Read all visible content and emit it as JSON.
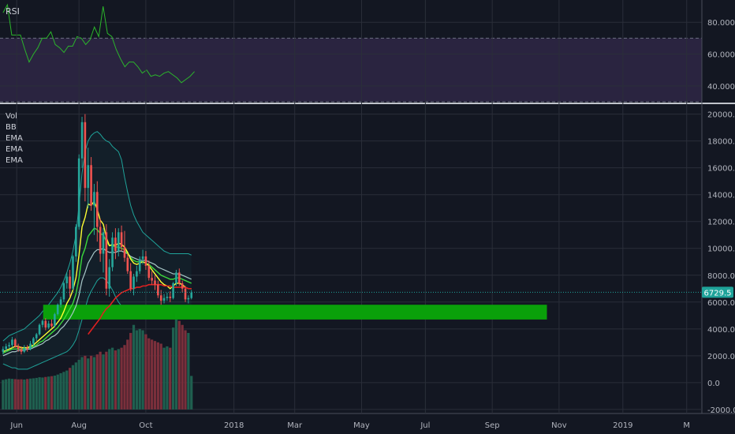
{
  "colors": {
    "background": "#131722",
    "grid": "#2a2e39",
    "axis_text": "#b2b5be",
    "up": "#26a69a",
    "down": "#ef5350",
    "volume_up": "#1f5f4f",
    "volume_down": "#7a2f3b",
    "rsi_line": "#2bb52b",
    "rsi_band": "#2a2440",
    "bb": "#1fa39a",
    "ema_fast": "#ffff33",
    "ema_mid": "#3bd93b",
    "ema_slow_grey": "#a8c8c8",
    "ema_long": "#e02020",
    "support_zone": "#0aa00a",
    "last_price_tag": "#1fa39a"
  },
  "rsi_panel": {
    "label": "RSI",
    "ticks": [
      "80.0000",
      "60.0000",
      "40.0000"
    ],
    "upper_band": 70,
    "lower_band": 30
  },
  "price_panel": {
    "legend": [
      "Vol",
      "BB",
      "EMA",
      "EMA",
      "EMA"
    ],
    "last_price": "6729.5"
  },
  "chart_data": [
    {
      "type": "line",
      "name": "rsi",
      "ylim": [
        29,
        94
      ],
      "x": [
        0.0,
        4,
        8,
        12,
        16,
        20,
        24,
        28,
        32,
        36,
        40,
        44,
        48,
        52,
        56,
        60,
        64,
        68,
        72,
        76,
        80,
        84,
        88,
        92,
        96,
        100,
        104,
        108,
        112,
        116,
        120,
        124,
        128,
        132,
        136,
        140,
        144,
        148,
        152,
        156,
        160,
        164,
        168,
        172,
        176
      ],
      "values": [
        86,
        91,
        72,
        72,
        72,
        63,
        55,
        60,
        64,
        70,
        70,
        74,
        66,
        64,
        61,
        65,
        65,
        71,
        70,
        66,
        69,
        77,
        71,
        90,
        73,
        71,
        63,
        57,
        52,
        55,
        55,
        52,
        48,
        50,
        46,
        47,
        46,
        48,
        49,
        47,
        45,
        42,
        44,
        46,
        49
      ]
    },
    {
      "type": "candlestick",
      "name": "price",
      "ylim": [
        -2300,
        20800
      ],
      "ticks": [
        20000,
        18000,
        16000,
        14000,
        12000,
        10000,
        8000,
        6000,
        4000,
        2000,
        0,
        -2000
      ],
      "tick_labels": [
        "20000.0",
        "18000.0",
        "16000.0",
        "14000.0",
        "12000.0",
        "10000.0",
        "8000.0",
        "6000.0",
        "4000.0",
        "2000.0",
        "0.0",
        "-2000.0"
      ],
      "x_ticks": [
        {
          "x": 4.5,
          "label": "Jun"
        },
        {
          "x": 25,
          "label": "Aug"
        },
        {
          "x": 47,
          "label": "Oct"
        },
        {
          "x": 76,
          "label": "2018"
        },
        {
          "x": 96,
          "label": "Mar"
        },
        {
          "x": 118,
          "label": "May"
        },
        {
          "x": 139,
          "label": "Jul"
        },
        {
          "x": 161,
          "label": "Sep"
        },
        {
          "x": 183,
          "label": "Nov"
        },
        {
          "x": 204,
          "label": "2019"
        },
        {
          "x": 225,
          "label": "M"
        }
      ],
      "x_range": [
        -1,
        230
      ],
      "candles": [
        [
          2300,
          2700,
          2100,
          2500
        ],
        [
          2500,
          2900,
          2300,
          2700
        ],
        [
          2700,
          3000,
          2500,
          2800
        ],
        [
          2800,
          3400,
          2600,
          3200
        ],
        [
          3200,
          3300,
          2600,
          2700
        ],
        [
          2700,
          2900,
          2300,
          2500
        ],
        [
          2500,
          2700,
          2100,
          2300
        ],
        [
          2300,
          2800,
          2200,
          2600
        ],
        [
          2600,
          2800,
          2300,
          2500
        ],
        [
          2500,
          3100,
          2400,
          2900
        ],
        [
          2900,
          3400,
          2700,
          3300
        ],
        [
          3300,
          3700,
          3100,
          3600
        ],
        [
          3600,
          4400,
          3500,
          4300
        ],
        [
          4300,
          4700,
          4100,
          4600
        ],
        [
          4600,
          4800,
          3900,
          4100
        ],
        [
          4100,
          4600,
          4000,
          4400
        ],
        [
          4400,
          4700,
          4100,
          4200
        ],
        [
          4200,
          5200,
          4100,
          5100
        ],
        [
          5100,
          5900,
          5000,
          5800
        ],
        [
          5800,
          6400,
          5600,
          6200
        ],
        [
          6200,
          7500,
          6000,
          7400
        ],
        [
          7400,
          8200,
          7000,
          7900
        ],
        [
          7900,
          8400,
          6400,
          7000
        ],
        [
          7000,
          9500,
          6900,
          9400
        ],
        [
          9400,
          11800,
          9000,
          11600
        ],
        [
          11600,
          17000,
          11400,
          16700
        ],
        [
          16700,
          19800,
          16000,
          19400
        ],
        [
          19400,
          20000,
          13500,
          14500
        ],
        [
          14500,
          17500,
          13000,
          16200
        ],
        [
          16200,
          16800,
          12800,
          13200
        ],
        [
          13200,
          14800,
          11000,
          14200
        ],
        [
          14200,
          15000,
          10500,
          11600
        ],
        [
          11600,
          12200,
          9000,
          9600
        ],
        [
          9600,
          11500,
          8200,
          11200
        ],
        [
          11200,
          11800,
          6500,
          7000
        ],
        [
          7000,
          9200,
          6400,
          8600
        ],
        [
          8600,
          11200,
          8300,
          10800
        ],
        [
          10800,
          11500,
          9200,
          9800
        ],
        [
          9800,
          11500,
          9400,
          11200
        ],
        [
          11200,
          11700,
          9800,
          10100
        ],
        [
          10100,
          11300,
          9000,
          9300
        ],
        [
          9300,
          9600,
          8100,
          8300
        ],
        [
          8300,
          8900,
          6800,
          7000
        ],
        [
          7000,
          8100,
          6500,
          7900
        ],
        [
          7900,
          8700,
          7500,
          8300
        ],
        [
          8300,
          9400,
          8100,
          9200
        ],
        [
          9200,
          9900,
          8800,
          9400
        ],
        [
          9400,
          9800,
          8400,
          8700
        ],
        [
          8700,
          9100,
          7600,
          7800
        ],
        [
          7800,
          8300,
          7300,
          7600
        ],
        [
          7600,
          8000,
          6900,
          7300
        ],
        [
          7300,
          7600,
          6300,
          6500
        ],
        [
          6500,
          6900,
          5800,
          6100
        ],
        [
          6100,
          6600,
          5900,
          6300
        ],
        [
          6300,
          6700,
          6100,
          6400
        ],
        [
          6400,
          6800,
          6000,
          6300
        ],
        [
          6300,
          7500,
          6200,
          7400
        ],
        [
          7400,
          8400,
          7200,
          8200
        ],
        [
          8200,
          8500,
          7200,
          7400
        ],
        [
          7400,
          7600,
          6700,
          7000
        ],
        [
          7000,
          7200,
          6000,
          6200
        ],
        [
          6200,
          6500,
          5900,
          6300
        ],
        [
          6300,
          6900,
          6200,
          6700
        ]
      ],
      "bb_upper": [
        3100,
        3300,
        3500,
        3600,
        3700,
        3800,
        3900,
        4000,
        4200,
        4400,
        4600,
        4800,
        5000,
        5300,
        5500,
        5800,
        6100,
        6400,
        6700,
        7100,
        7600,
        8200,
        8900,
        9800,
        11000,
        13200,
        15600,
        17200,
        18000,
        18400,
        18600,
        18700,
        18500,
        18200,
        18000,
        17900,
        17600,
        17400,
        17200,
        16600,
        15300,
        14200,
        13200,
        12500,
        12000,
        11600,
        11200,
        11000,
        10800,
        10600,
        10400,
        10200,
        10000,
        9800,
        9700,
        9600,
        9600,
        9600,
        9600,
        9600,
        9600,
        9600,
        9500
      ],
      "bb_lower": [
        1400,
        1300,
        1200,
        1100,
        1100,
        1000,
        1000,
        1000,
        1000,
        1100,
        1200,
        1300,
        1400,
        1500,
        1600,
        1700,
        1800,
        1900,
        2000,
        2100,
        2200,
        2300,
        2500,
        2800,
        3200,
        3900,
        4700,
        5500,
        6300,
        6800,
        7200,
        7600,
        7800,
        7800,
        7600,
        7300,
        6900,
        6400,
        6000,
        5700,
        5400,
        5200,
        5100,
        5100,
        5200,
        5300,
        5400,
        5500,
        5500,
        5500,
        5500,
        5400,
        5300,
        5200,
        5200,
        5300,
        5400,
        5500,
        5500,
        5400,
        5300,
        5300,
        5300
      ],
      "ema_fast": [
        2300,
        2400,
        2500,
        2600,
        2700,
        2700,
        2600,
        2600,
        2600,
        2700,
        2800,
        3000,
        3200,
        3400,
        3600,
        3800,
        4000,
        4200,
        4500,
        4800,
        5300,
        5900,
        6300,
        6900,
        7800,
        9500,
        11600,
        12300,
        13300,
        13200,
        13500,
        12900,
        12100,
        11800,
        10800,
        10200,
        10300,
        10200,
        10400,
        10300,
        10100,
        9700,
        9200,
        8900,
        8800,
        8900,
        9000,
        8900,
        8700,
        8400,
        8100,
        7800,
        7500,
        7300,
        7200,
        7000,
        7200,
        7400,
        7400,
        7300,
        7100,
        7000,
        7000
      ],
      "ema_mid": [
        2200,
        2300,
        2400,
        2500,
        2500,
        2500,
        2500,
        2500,
        2600,
        2600,
        2700,
        2800,
        3000,
        3100,
        3300,
        3500,
        3700,
        3900,
        4100,
        4400,
        4700,
        5100,
        5500,
        5900,
        6600,
        7800,
        9400,
        10000,
        10900,
        11200,
        11500,
        11400,
        11100,
        11000,
        10500,
        10200,
        10200,
        10100,
        10100,
        10000,
        9900,
        9600,
        9300,
        9100,
        9000,
        9000,
        9000,
        8900,
        8800,
        8600,
        8400,
        8200,
        8000,
        7900,
        7800,
        7700,
        7700,
        7800,
        7800,
        7700,
        7600,
        7500,
        7400
      ],
      "ema_slow_grey": [
        2000,
        2100,
        2200,
        2300,
        2300,
        2400,
        2400,
        2400,
        2500,
        2500,
        2600,
        2700,
        2800,
        2900,
        3100,
        3200,
        3400,
        3500,
        3700,
        4000,
        4200,
        4500,
        4800,
        5200,
        5700,
        6500,
        7600,
        8200,
        8900,
        9300,
        9700,
        9900,
        9900,
        10000,
        9800,
        9700,
        9700,
        9700,
        9800,
        9800,
        9700,
        9600,
        9400,
        9300,
        9200,
        9100,
        9100,
        9100,
        9000,
        8900,
        8800,
        8600,
        8500,
        8400,
        8300,
        8200,
        8100,
        8100,
        8100,
        8000,
        7900,
        7800,
        7700
      ],
      "ema_long": [
        null,
        null,
        null,
        null,
        null,
        null,
        null,
        null,
        null,
        null,
        null,
        null,
        null,
        null,
        null,
        null,
        null,
        null,
        null,
        null,
        null,
        null,
        null,
        null,
        null,
        null,
        null,
        null,
        3600,
        3900,
        4200,
        4500,
        4800,
        5200,
        5500,
        5700,
        6000,
        6300,
        6500,
        6700,
        6800,
        6900,
        7000,
        7000,
        7100,
        7100,
        7200,
        7200,
        7300,
        7300,
        7300,
        7300,
        7300,
        7200,
        7200,
        7200,
        7100,
        7100,
        7100,
        7100,
        7100,
        7000,
        7000
      ],
      "volume": [
        200,
        250,
        300,
        280,
        260,
        240,
        250,
        230,
        270,
        300,
        320,
        350,
        400,
        380,
        420,
        450,
        480,
        520,
        600,
        700,
        800,
        900,
        1100,
        1300,
        1500,
        1700,
        1900,
        2000,
        1800,
        2000,
        1900,
        2100,
        2300,
        2100,
        2300,
        2500,
        2600,
        2400,
        2500,
        2600,
        2800,
        3200,
        3700,
        4300,
        3900,
        4000,
        3900,
        3600,
        3300,
        3200,
        3100,
        3000,
        2900,
        2600,
        2700,
        2600,
        4100,
        4900,
        4600,
        4300,
        3900,
        3700,
        500
      ],
      "support_zone": {
        "x_start": 13.2,
        "x_end": 179,
        "low": 4700,
        "high": 5800
      }
    }
  ]
}
